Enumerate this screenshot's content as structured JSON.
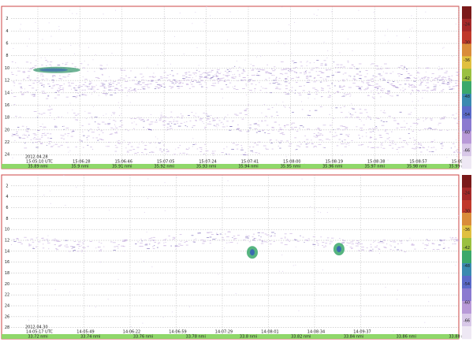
{
  "panels": [
    {
      "date": "2012.04.28",
      "times": [
        "15:05:10 UTC",
        "15:06:28",
        "15:06:46",
        "15:07:05",
        "15:07:24",
        "15:07:41",
        "15:08:00",
        "15:08:19",
        "15:08:38",
        "15:08:57",
        "15:09:15"
      ],
      "distances": [
        "35.89 nmi",
        "35.9 nmi",
        "35.91 nmi",
        "35.92 nmi",
        "35.93 nmi",
        "35.94 nmi",
        "35.95 nmi",
        "35.96 nmi",
        "35.97 nmi",
        "35.98 nmi",
        "35.99 nmi"
      ],
      "depths": [
        2,
        4,
        6,
        8,
        10,
        12,
        14,
        16,
        18,
        20,
        22,
        24
      ],
      "scale": [
        -24,
        -30,
        -36,
        -42,
        -48,
        -54,
        -60,
        -66
      ]
    },
    {
      "date": "2012.04.30",
      "times": [
        "14:05:17 UTC",
        "14:05:49",
        "14:06:22",
        "14:06:59",
        "14:07:29",
        "14:08:01",
        "14:08:34",
        "14:09:37"
      ],
      "distances": [
        "33.72 nmi",
        "33.74 nmi",
        "33.76 nmi",
        "33.78 nmi",
        "33.8 nmi",
        "33.82 nmi",
        "33.84 nmi",
        "33.86 nmi",
        "33.88 nmi"
      ],
      "depths": [
        2,
        4,
        6,
        8,
        10,
        12,
        14,
        16,
        18,
        20,
        22,
        24,
        26,
        28
      ],
      "scale": [
        -24,
        -30,
        -36,
        -42,
        -48,
        -54,
        -60,
        -66
      ]
    }
  ]
}
